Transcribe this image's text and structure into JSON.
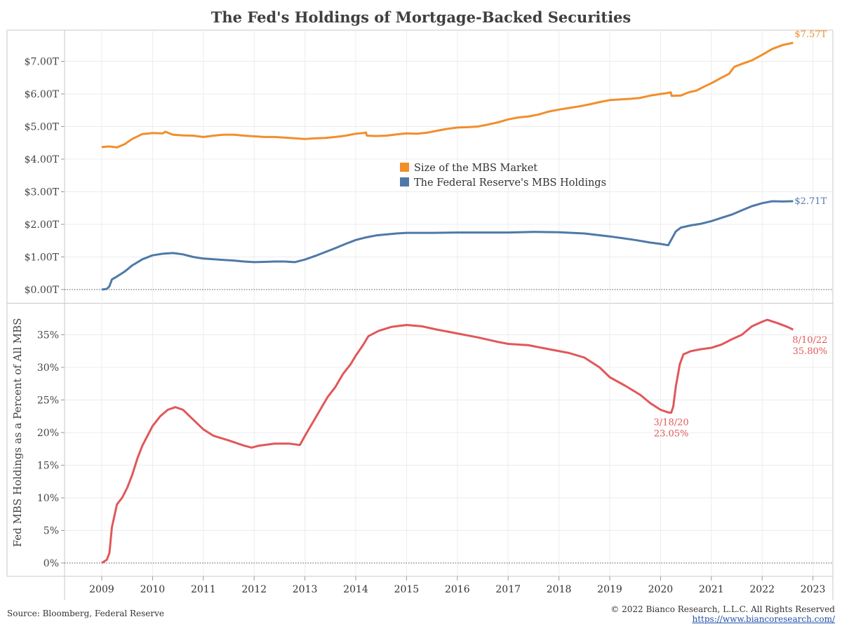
{
  "title": "The Fed's Holdings of Mortgage-Backed Securities",
  "footer": {
    "source": "Source: Bloomberg, Federal Reserve",
    "copyright": "© 2022 Bianco Research, L.L.C. All Rights Reserved",
    "url": "https://www.biancoresearch.com/"
  },
  "colors": {
    "mbs_market": "#f28e2b",
    "fed_holdings": "#4e79a7",
    "percent": "#e15759",
    "grid": "#ececec",
    "axis": "#c8c8c8"
  },
  "chart_data": [
    {
      "type": "line",
      "title": "",
      "xlabel": "",
      "ylabel": "",
      "xlim": [
        2009.0,
        2023.3
      ],
      "ylim": [
        -0.4,
        7.95
      ],
      "y_ticks": [
        {
          "value": 0,
          "label": "$0.00T"
        },
        {
          "value": 1,
          "label": "$1.00T"
        },
        {
          "value": 2,
          "label": "$2.00T"
        },
        {
          "value": 3,
          "label": "$3.00T"
        },
        {
          "value": 4,
          "label": "$4.00T"
        },
        {
          "value": 5,
          "label": "$5.00T"
        },
        {
          "value": 6,
          "label": "$6.00T"
        },
        {
          "value": 7,
          "label": "$7.00T"
        }
      ],
      "grid": true,
      "legend_position": "center",
      "series": [
        {
          "name": "Size of the MBS Market",
          "color": "#f28e2b",
          "end_label": "$7.57T",
          "points": [
            [
              2009.0,
              4.37
            ],
            [
              2009.15,
              4.39
            ],
            [
              2009.3,
              4.36
            ],
            [
              2009.45,
              4.46
            ],
            [
              2009.6,
              4.62
            ],
            [
              2009.8,
              4.77
            ],
            [
              2010.0,
              4.8
            ],
            [
              2010.2,
              4.79
            ],
            [
              2010.25,
              4.84
            ],
            [
              2010.4,
              4.75
            ],
            [
              2010.6,
              4.73
            ],
            [
              2010.8,
              4.72
            ],
            [
              2011.0,
              4.68
            ],
            [
              2011.2,
              4.72
            ],
            [
              2011.4,
              4.75
            ],
            [
              2011.6,
              4.75
            ],
            [
              2011.8,
              4.72
            ],
            [
              2012.0,
              4.7
            ],
            [
              2012.2,
              4.68
            ],
            [
              2012.4,
              4.68
            ],
            [
              2012.6,
              4.66
            ],
            [
              2012.8,
              4.64
            ],
            [
              2013.0,
              4.62
            ],
            [
              2013.2,
              4.64
            ],
            [
              2013.4,
              4.65
            ],
            [
              2013.6,
              4.68
            ],
            [
              2013.8,
              4.72
            ],
            [
              2014.0,
              4.78
            ],
            [
              2014.15,
              4.8
            ],
            [
              2014.2,
              4.82
            ],
            [
              2014.22,
              4.72
            ],
            [
              2014.4,
              4.71
            ],
            [
              2014.6,
              4.72
            ],
            [
              2014.8,
              4.76
            ],
            [
              2015.0,
              4.79
            ],
            [
              2015.2,
              4.78
            ],
            [
              2015.4,
              4.81
            ],
            [
              2015.6,
              4.87
            ],
            [
              2015.8,
              4.93
            ],
            [
              2016.0,
              4.97
            ],
            [
              2016.2,
              4.98
            ],
            [
              2016.4,
              5.0
            ],
            [
              2016.6,
              5.06
            ],
            [
              2016.8,
              5.13
            ],
            [
              2017.0,
              5.22
            ],
            [
              2017.2,
              5.28
            ],
            [
              2017.4,
              5.31
            ],
            [
              2017.6,
              5.37
            ],
            [
              2017.8,
              5.46
            ],
            [
              2018.0,
              5.52
            ],
            [
              2018.2,
              5.57
            ],
            [
              2018.4,
              5.62
            ],
            [
              2018.6,
              5.68
            ],
            [
              2018.8,
              5.75
            ],
            [
              2019.0,
              5.81
            ],
            [
              2019.2,
              5.83
            ],
            [
              2019.4,
              5.85
            ],
            [
              2019.6,
              5.88
            ],
            [
              2019.8,
              5.95
            ],
            [
              2020.0,
              6.0
            ],
            [
              2020.1,
              6.02
            ],
            [
              2020.2,
              6.05
            ],
            [
              2020.22,
              5.94
            ],
            [
              2020.4,
              5.95
            ],
            [
              2020.55,
              6.05
            ],
            [
              2020.7,
              6.1
            ],
            [
              2020.85,
              6.22
            ],
            [
              2021.0,
              6.33
            ],
            [
              2021.2,
              6.5
            ],
            [
              2021.35,
              6.62
            ],
            [
              2021.45,
              6.83
            ],
            [
              2021.6,
              6.92
            ],
            [
              2021.8,
              7.03
            ],
            [
              2022.0,
              7.2
            ],
            [
              2022.2,
              7.38
            ],
            [
              2022.4,
              7.5
            ],
            [
              2022.61,
              7.57
            ]
          ]
        },
        {
          "name": "The Federal Reserve's MBS Holdings",
          "color": "#4e79a7",
          "end_label": "$2.71T",
          "points": [
            [
              2009.0,
              0.0
            ],
            [
              2009.1,
              0.02
            ],
            [
              2009.15,
              0.1
            ],
            [
              2009.2,
              0.31
            ],
            [
              2009.3,
              0.4
            ],
            [
              2009.45,
              0.55
            ],
            [
              2009.6,
              0.74
            ],
            [
              2009.8,
              0.93
            ],
            [
              2010.0,
              1.05
            ],
            [
              2010.2,
              1.1
            ],
            [
              2010.4,
              1.12
            ],
            [
              2010.6,
              1.08
            ],
            [
              2010.8,
              1.0
            ],
            [
              2011.0,
              0.95
            ],
            [
              2011.2,
              0.93
            ],
            [
              2011.4,
              0.91
            ],
            [
              2011.6,
              0.89
            ],
            [
              2011.8,
              0.86
            ],
            [
              2012.0,
              0.84
            ],
            [
              2012.2,
              0.85
            ],
            [
              2012.4,
              0.86
            ],
            [
              2012.6,
              0.86
            ],
            [
              2012.8,
              0.84
            ],
            [
              2013.0,
              0.92
            ],
            [
              2013.2,
              1.03
            ],
            [
              2013.4,
              1.15
            ],
            [
              2013.6,
              1.27
            ],
            [
              2013.8,
              1.4
            ],
            [
              2014.0,
              1.52
            ],
            [
              2014.2,
              1.6
            ],
            [
              2014.4,
              1.66
            ],
            [
              2014.6,
              1.69
            ],
            [
              2014.8,
              1.72
            ],
            [
              2015.0,
              1.74
            ],
            [
              2015.5,
              1.74
            ],
            [
              2016.0,
              1.75
            ],
            [
              2016.5,
              1.75
            ],
            [
              2017.0,
              1.75
            ],
            [
              2017.5,
              1.77
            ],
            [
              2018.0,
              1.76
            ],
            [
              2018.5,
              1.72
            ],
            [
              2019.0,
              1.63
            ],
            [
              2019.5,
              1.52
            ],
            [
              2019.8,
              1.44
            ],
            [
              2020.0,
              1.4
            ],
            [
              2020.15,
              1.36
            ],
            [
              2020.2,
              1.5
            ],
            [
              2020.3,
              1.78
            ],
            [
              2020.4,
              1.9
            ],
            [
              2020.6,
              1.97
            ],
            [
              2020.8,
              2.02
            ],
            [
              2021.0,
              2.1
            ],
            [
              2021.2,
              2.2
            ],
            [
              2021.4,
              2.3
            ],
            [
              2021.6,
              2.43
            ],
            [
              2021.8,
              2.56
            ],
            [
              2022.0,
              2.65
            ],
            [
              2022.2,
              2.71
            ],
            [
              2022.4,
              2.7
            ],
            [
              2022.61,
              2.71
            ]
          ]
        }
      ]
    },
    {
      "type": "line",
      "title": "",
      "xlabel": "",
      "ylabel": "Fed MBS Holdings as a Percent of All MBS",
      "xlim": [
        2009.0,
        2023.3
      ],
      "ylim": [
        -2,
        40
      ],
      "y_ticks": [
        {
          "value": 0,
          "label": "0%"
        },
        {
          "value": 5,
          "label": "5%"
        },
        {
          "value": 10,
          "label": "10%"
        },
        {
          "value": 15,
          "label": "15%"
        },
        {
          "value": 20,
          "label": "20%"
        },
        {
          "value": 25,
          "label": "25%"
        },
        {
          "value": 30,
          "label": "30%"
        },
        {
          "value": 35,
          "label": "35%"
        }
      ],
      "x_ticks": [
        "2009",
        "2010",
        "2011",
        "2012",
        "2013",
        "2014",
        "2015",
        "2016",
        "2017",
        "2018",
        "2019",
        "2020",
        "2021",
        "2022",
        "2023"
      ],
      "grid": true,
      "series": [
        {
          "name": "",
          "color": "#e15759",
          "points": [
            [
              2009.0,
              0.0
            ],
            [
              2009.1,
              0.5
            ],
            [
              2009.15,
              1.5
            ],
            [
              2009.2,
              5.5
            ],
            [
              2009.3,
              9.0
            ],
            [
              2009.4,
              10.0
            ],
            [
              2009.5,
              11.5
            ],
            [
              2009.6,
              13.5
            ],
            [
              2009.7,
              16.0
            ],
            [
              2009.8,
              18.0
            ],
            [
              2009.9,
              19.5
            ],
            [
              2010.0,
              21.0
            ],
            [
              2010.15,
              22.5
            ],
            [
              2010.3,
              23.5
            ],
            [
              2010.45,
              23.9
            ],
            [
              2010.6,
              23.5
            ],
            [
              2010.8,
              22.0
            ],
            [
              2011.0,
              20.5
            ],
            [
              2011.2,
              19.5
            ],
            [
              2011.5,
              18.8
            ],
            [
              2011.8,
              18.0
            ],
            [
              2011.95,
              17.7
            ],
            [
              2012.1,
              18.0
            ],
            [
              2012.4,
              18.3
            ],
            [
              2012.7,
              18.3
            ],
            [
              2012.9,
              18.1
            ],
            [
              2013.0,
              19.5
            ],
            [
              2013.15,
              21.5
            ],
            [
              2013.3,
              23.5
            ],
            [
              2013.45,
              25.5
            ],
            [
              2013.6,
              27.0
            ],
            [
              2013.75,
              29.0
            ],
            [
              2013.9,
              30.5
            ],
            [
              2014.0,
              31.8
            ],
            [
              2014.15,
              33.5
            ],
            [
              2014.25,
              34.8
            ],
            [
              2014.45,
              35.6
            ],
            [
              2014.7,
              36.2
            ],
            [
              2015.0,
              36.5
            ],
            [
              2015.3,
              36.3
            ],
            [
              2015.6,
              35.8
            ],
            [
              2016.0,
              35.2
            ],
            [
              2016.4,
              34.6
            ],
            [
              2016.8,
              33.9
            ],
            [
              2017.0,
              33.6
            ],
            [
              2017.4,
              33.4
            ],
            [
              2017.8,
              32.8
            ],
            [
              2018.2,
              32.2
            ],
            [
              2018.5,
              31.5
            ],
            [
              2018.8,
              30.0
            ],
            [
              2019.0,
              28.5
            ],
            [
              2019.3,
              27.2
            ],
            [
              2019.6,
              25.8
            ],
            [
              2019.8,
              24.5
            ],
            [
              2020.0,
              23.5
            ],
            [
              2020.15,
              23.1
            ],
            [
              2020.21,
              23.05
            ],
            [
              2020.25,
              24.0
            ],
            [
              2020.3,
              27.0
            ],
            [
              2020.38,
              30.5
            ],
            [
              2020.45,
              32.0
            ],
            [
              2020.6,
              32.5
            ],
            [
              2020.8,
              32.8
            ],
            [
              2021.0,
              33.0
            ],
            [
              2021.2,
              33.5
            ],
            [
              2021.4,
              34.3
            ],
            [
              2021.6,
              35.0
            ],
            [
              2021.8,
              36.3
            ],
            [
              2022.0,
              37.0
            ],
            [
              2022.1,
              37.3
            ],
            [
              2022.3,
              36.8
            ],
            [
              2022.5,
              36.2
            ],
            [
              2022.61,
              35.8
            ]
          ]
        }
      ],
      "annotations": [
        {
          "x": 2020.21,
          "y": 23.05,
          "lines": [
            "3/18/20",
            "23.05%"
          ]
        },
        {
          "x": 2022.61,
          "y": 35.8,
          "lines": [
            "8/10/22",
            "35.80%"
          ]
        }
      ]
    }
  ]
}
